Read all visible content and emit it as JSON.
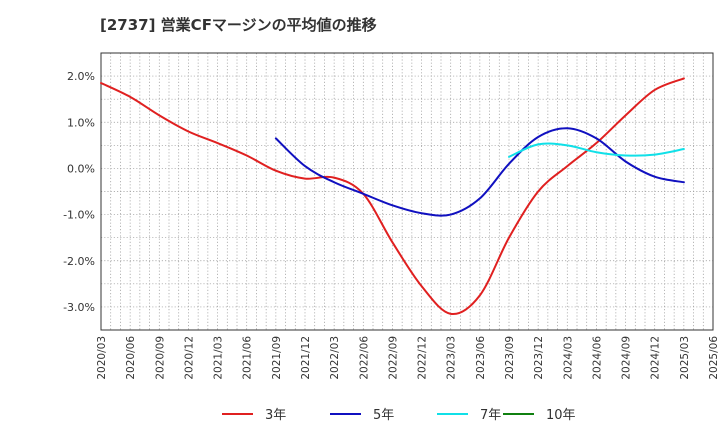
{
  "chart_data": {
    "type": "line",
    "title": "[2737]  営業CFマージンの平均値の推移",
    "xlabel": "",
    "ylabel": "",
    "ylim": [
      -3.5,
      2.5
    ],
    "y_unit": "%",
    "yticks": [
      {
        "value": 2.0,
        "label": "2.0%"
      },
      {
        "value": 1.0,
        "label": "1.0%"
      },
      {
        "value": 0.0,
        "label": "0.0%"
      },
      {
        "value": -1.0,
        "label": "-1.0%"
      },
      {
        "value": -2.0,
        "label": "-2.0%"
      },
      {
        "value": -3.0,
        "label": "-3.0%"
      }
    ],
    "x_ticks": [
      "2020/03",
      "2020/06",
      "2020/09",
      "2020/12",
      "2021/03",
      "2021/06",
      "2021/09",
      "2021/12",
      "2022/03",
      "2022/06",
      "2022/09",
      "2022/12",
      "2023/03",
      "2023/06",
      "2023/09",
      "2023/12",
      "2024/03",
      "2024/06",
      "2024/09",
      "2024/12",
      "2025/03",
      "2025/06"
    ],
    "grid": true,
    "legend_position": "bottom",
    "series": [
      {
        "name": "3年",
        "color": "#e02020",
        "points": [
          [
            "2020/03",
            1.85
          ],
          [
            "2020/06",
            1.55
          ],
          [
            "2020/09",
            1.15
          ],
          [
            "2020/12",
            0.8
          ],
          [
            "2021/03",
            0.55
          ],
          [
            "2021/06",
            0.28
          ],
          [
            "2021/09",
            -0.05
          ],
          [
            "2021/12",
            -0.22
          ],
          [
            "2022/03",
            -0.2
          ],
          [
            "2022/06",
            -0.55
          ],
          [
            "2022/09",
            -1.6
          ],
          [
            "2022/12",
            -2.55
          ],
          [
            "2023/03",
            -3.15
          ],
          [
            "2023/06",
            -2.75
          ],
          [
            "2023/09",
            -1.5
          ],
          [
            "2023/12",
            -0.5
          ],
          [
            "2024/03",
            0.05
          ],
          [
            "2024/06",
            0.55
          ],
          [
            "2024/09",
            1.15
          ],
          [
            "2024/12",
            1.7
          ],
          [
            "2025/03",
            1.95
          ]
        ]
      },
      {
        "name": "5年",
        "color": "#1010c0",
        "points": [
          [
            "2021/09",
            0.65
          ],
          [
            "2021/12",
            0.05
          ],
          [
            "2022/03",
            -0.3
          ],
          [
            "2022/06",
            -0.55
          ],
          [
            "2022/09",
            -0.8
          ],
          [
            "2022/12",
            -0.97
          ],
          [
            "2023/03",
            -1.0
          ],
          [
            "2023/06",
            -0.65
          ],
          [
            "2023/09",
            0.1
          ],
          [
            "2023/12",
            0.68
          ],
          [
            "2024/03",
            0.87
          ],
          [
            "2024/06",
            0.65
          ],
          [
            "2024/09",
            0.15
          ],
          [
            "2024/12",
            -0.18
          ],
          [
            "2025/03",
            -0.3
          ]
        ]
      },
      {
        "name": "7年",
        "color": "#10e0e8",
        "points": [
          [
            "2023/09",
            0.25
          ],
          [
            "2023/12",
            0.52
          ],
          [
            "2024/03",
            0.5
          ],
          [
            "2024/06",
            0.35
          ],
          [
            "2024/09",
            0.28
          ],
          [
            "2024/12",
            0.3
          ],
          [
            "2025/03",
            0.42
          ]
        ]
      },
      {
        "name": "10年",
        "color": "#108010",
        "points": []
      }
    ]
  }
}
